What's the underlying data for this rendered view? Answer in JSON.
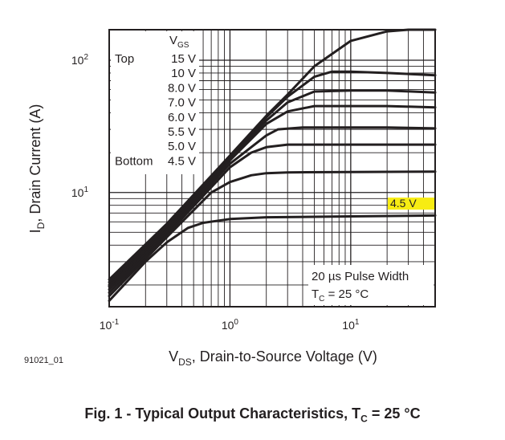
{
  "chart_data": {
    "type": "line",
    "x_scale": "log",
    "y_scale": "log",
    "xlim": [
      0.1,
      50
    ],
    "ylim": [
      1.37,
      170
    ],
    "grid": true,
    "xlabel": {
      "main": "V",
      "sub": "DS",
      "rest": ", Drain-to-Source Voltage (V)"
    },
    "ylabel": {
      "main": "I",
      "sub": "D",
      "rest": ", Drain Current (A)"
    },
    "x_ticks": [
      {
        "value": 0.1,
        "base": "10",
        "exp": "-1"
      },
      {
        "value": 1,
        "base": "10",
        "exp": "0"
      },
      {
        "value": 10,
        "base": "10",
        "exp": "1"
      }
    ],
    "y_ticks": [
      {
        "value": 10,
        "base": "10",
        "exp": "1"
      },
      {
        "value": 100,
        "base": "10",
        "exp": "2"
      }
    ],
    "legend": {
      "header_main": "V",
      "header_sub": "GS",
      "top_label": "Top",
      "bottom_label": "Bottom",
      "entries": [
        "15 V",
        "10 V",
        "8.0 V",
        "7.0 V",
        "6.0 V",
        "5.5 V",
        "5.0 V",
        "4.5 V"
      ]
    },
    "highlight_label": "4.5 V",
    "highlight_color": "#f7ec13",
    "annotation": {
      "line1": "20 µs Pulse Width",
      "line2_main": "T",
      "line2_sub": "C",
      "line2_rest": " = 25 °C"
    },
    "series": [
      {
        "name": "15 V",
        "x": [
          0.1,
          0.3,
          1,
          2,
          3,
          5,
          10,
          20,
          30,
          50
        ],
        "y": [
          2.2,
          5.8,
          19,
          38,
          55,
          90,
          140,
          165,
          170,
          170
        ]
      },
      {
        "name": "10 V",
        "x": [
          0.1,
          0.3,
          1,
          2,
          3,
          5,
          7,
          10,
          20,
          50
        ],
        "y": [
          2.1,
          5.6,
          18.5,
          37,
          53,
          75,
          82,
          82,
          80,
          77
        ]
      },
      {
        "name": "8.0 V",
        "x": [
          0.1,
          0.3,
          1,
          2,
          3,
          5,
          10,
          20,
          50
        ],
        "y": [
          2.0,
          5.4,
          18,
          35,
          48,
          58,
          59,
          59,
          57
        ]
      },
      {
        "name": "7.0 V",
        "x": [
          0.1,
          0.3,
          1,
          2,
          3,
          5,
          10,
          20,
          50
        ],
        "y": [
          1.95,
          5.2,
          17.5,
          33,
          41,
          45,
          45,
          45,
          44
        ]
      },
      {
        "name": "6.0 V",
        "x": [
          0.1,
          0.3,
          1,
          2,
          2.5,
          4,
          10,
          20,
          50
        ],
        "y": [
          1.85,
          5.0,
          16.5,
          27,
          30,
          31,
          31,
          31,
          30.5
        ]
      },
      {
        "name": "5.5 V",
        "x": [
          0.1,
          0.3,
          1,
          1.5,
          2,
          3,
          10,
          50
        ],
        "y": [
          1.75,
          4.8,
          15.5,
          20,
          22,
          23,
          23,
          23
        ]
      },
      {
        "name": "5.0 V",
        "x": [
          0.1,
          0.3,
          0.7,
          1,
          1.5,
          2,
          3,
          10,
          50
        ],
        "y": [
          1.65,
          4.6,
          10,
          12,
          13.5,
          14,
          14.2,
          14.3,
          14.4
        ]
      },
      {
        "name": "4.5 V",
        "x": [
          0.1,
          0.2,
          0.3,
          0.45,
          0.6,
          1,
          2,
          10,
          50
        ],
        "y": [
          1.52,
          3.0,
          4.2,
          5.4,
          5.9,
          6.3,
          6.5,
          6.6,
          6.7
        ]
      }
    ],
    "figure_id": "91021_01",
    "caption": {
      "main": "Fig. 1 - Typical Output Characteristics, T",
      "sub": "C",
      "rest": " = 25 °C"
    }
  }
}
